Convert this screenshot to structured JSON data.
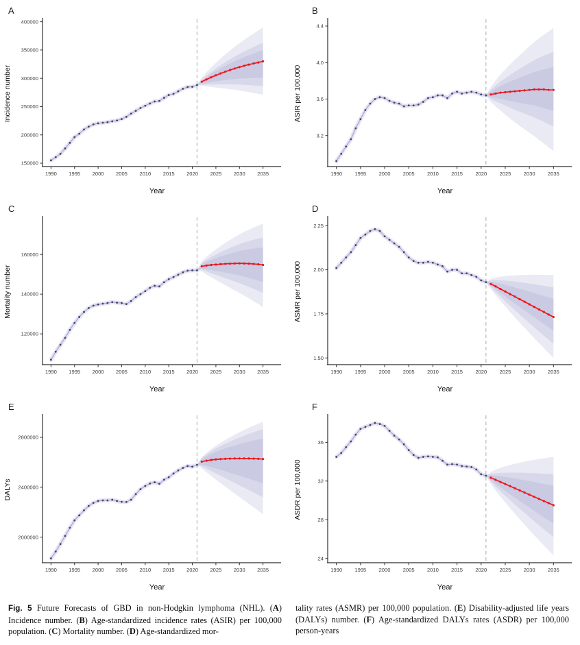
{
  "style": {
    "history_line_color": "#a9a7d9",
    "history_ribbon_color": "#b7b5e0",
    "history_point_color": "#45435f",
    "forecast_line_color": "#f01418",
    "band_fill_color": "#8d8dc2",
    "dashed_line_color": "#bdbdbd",
    "axis_color": "#2e2e2e",
    "tick_label_color": "#3d3d3d"
  },
  "caption": {
    "left_segments": [
      {
        "t": "Fig. 5",
        "fig": true
      },
      {
        "t": "  Future Forecasts of GBD in non-Hodgkin lymphoma (NHL). (",
        "b": false
      },
      {
        "t": "A",
        "b": true
      },
      {
        "t": ") Incidence number. (",
        "b": false
      },
      {
        "t": "B",
        "b": true
      },
      {
        "t": ") Age-standardized incidence rates (ASIR) per 100,000 population. (",
        "b": false
      },
      {
        "t": "C",
        "b": true
      },
      {
        "t": ") Mortality number. (",
        "b": false
      },
      {
        "t": "D",
        "b": true
      },
      {
        "t": ") Age-standardized mor-",
        "b": false
      }
    ],
    "right_segments": [
      {
        "t": "tality rates (ASMR) per 100,000 population. (",
        "b": false
      },
      {
        "t": "E",
        "b": true
      },
      {
        "t": ") Disability-adjusted life years (DALYs) number. (",
        "b": false
      },
      {
        "t": "F",
        "b": true
      },
      {
        "t": ") Age-standardized DALYs rates (ASDR) per 100,000 person-years",
        "b": false
      }
    ]
  },
  "chart_data": [
    {
      "type": "line",
      "panel_letter": "A",
      "ylabel": "Incidence number",
      "xlabel": "Year",
      "xlim": [
        1988.2,
        2036.8
      ],
      "ylim": [
        144000,
        402000
      ],
      "x_tick_labels": [
        "1990",
        "1995",
        "2000",
        "2005",
        "2010",
        "2015",
        "2020",
        "2025",
        "2030",
        "2035"
      ],
      "x_tick_values": [
        1990,
        1995,
        2000,
        2005,
        2010,
        2015,
        2020,
        2025,
        2030,
        2035
      ],
      "y_tick_labels": [
        "150000",
        "200000",
        "250000",
        "300000",
        "350000",
        "400000"
      ],
      "y_tick_values": [
        150000,
        200000,
        250000,
        300000,
        350000,
        400000
      ],
      "history_years_start": 1990,
      "history_values": [
        155000,
        160500,
        166500,
        176000,
        186000,
        196000,
        202000,
        209500,
        214500,
        218500,
        220500,
        221500,
        222500,
        224000,
        225500,
        228000,
        232000,
        237500,
        242500,
        247500,
        251500,
        255500,
        259000,
        260000,
        265500,
        270500,
        272500,
        277000,
        281500,
        284500,
        285000,
        288000
      ],
      "forecast_break_year": 2021,
      "forecast_years_start": 2022,
      "forecast_values": [
        294000,
        298000,
        301800,
        305300,
        308600,
        311700,
        314600,
        317300,
        319800,
        322100,
        324200,
        326100,
        328000,
        330000
      ],
      "forecast_bands": [
        {
          "level": 95,
          "lo_end": 271000,
          "hi_end": 390000
        },
        {
          "level": 80,
          "lo_end": 286000,
          "hi_end": 363000
        },
        {
          "level": 50,
          "lo_end": 301000,
          "hi_end": 350000
        }
      ]
    },
    {
      "type": "line",
      "panel_letter": "B",
      "ylabel": "ASIR per 100,000",
      "xlabel": "Year",
      "xlim": [
        1988.2,
        2036.8
      ],
      "ylim": [
        2.86,
        4.46
      ],
      "x_tick_labels": [
        "1990",
        "1995",
        "2000",
        "2005",
        "2010",
        "2015",
        "2020",
        "2025",
        "2030",
        "2035"
      ],
      "x_tick_values": [
        1990,
        1995,
        2000,
        2005,
        2010,
        2015,
        2020,
        2025,
        2030,
        2035
      ],
      "y_tick_labels": [
        "3.2",
        "3.6",
        "4.0",
        "4.4"
      ],
      "y_tick_values": [
        3.2,
        3.6,
        4.0,
        4.4
      ],
      "history_years_start": 1990,
      "history_values": [
        2.92,
        3.0,
        3.08,
        3.16,
        3.28,
        3.38,
        3.48,
        3.55,
        3.6,
        3.62,
        3.61,
        3.58,
        3.56,
        3.55,
        3.52,
        3.53,
        3.53,
        3.54,
        3.57,
        3.61,
        3.62,
        3.64,
        3.64,
        3.61,
        3.66,
        3.68,
        3.66,
        3.67,
        3.68,
        3.67,
        3.65,
        3.64
      ],
      "forecast_break_year": 2021,
      "forecast_years_start": 2022,
      "forecast_values": [
        3.65,
        3.66,
        3.67,
        3.675,
        3.68,
        3.685,
        3.69,
        3.695,
        3.7,
        3.705,
        3.705,
        3.705,
        3.7,
        3.7
      ],
      "forecast_bands": [
        {
          "level": 95,
          "lo_end": 3.03,
          "hi_end": 4.38
        },
        {
          "level": 80,
          "lo_end": 3.3,
          "hi_end": 4.12
        },
        {
          "level": 50,
          "lo_end": 3.47,
          "hi_end": 3.95
        }
      ]
    },
    {
      "type": "line",
      "panel_letter": "C",
      "ylabel": "Mortality number",
      "xlabel": "Year",
      "xlim": [
        1988.2,
        2036.8
      ],
      "ylim": [
        104500,
        178000
      ],
      "x_tick_labels": [
        "1990",
        "1995",
        "2000",
        "2005",
        "2010",
        "2015",
        "2020",
        "2025",
        "2030",
        "2035"
      ],
      "x_tick_values": [
        1990,
        1995,
        2000,
        2005,
        2010,
        2015,
        2020,
        2025,
        2030,
        2035
      ],
      "y_tick_labels": [
        "120000",
        "140000",
        "160000"
      ],
      "y_tick_values": [
        120000,
        140000,
        160000
      ],
      "history_years_start": 1990,
      "history_values": [
        107000,
        111000,
        114500,
        118000,
        122000,
        125500,
        128500,
        131000,
        133000,
        134200,
        134800,
        135200,
        135500,
        136000,
        135700,
        135500,
        135000,
        136500,
        138500,
        140000,
        141500,
        143200,
        144200,
        143900,
        146000,
        147500,
        148600,
        149800,
        151000,
        151800,
        152000,
        152000
      ],
      "forecast_break_year": 2021,
      "forecast_years_start": 2022,
      "forecast_values": [
        154000,
        154400,
        154700,
        154900,
        155100,
        155250,
        155350,
        155450,
        155500,
        155450,
        155350,
        155200,
        155000,
        154700
      ],
      "forecast_bands": [
        {
          "level": 95,
          "lo_end": 133500,
          "hi_end": 175500
        },
        {
          "level": 80,
          "lo_end": 140500,
          "hi_end": 168500
        },
        {
          "level": 50,
          "lo_end": 146000,
          "hi_end": 163500
        }
      ]
    },
    {
      "type": "line",
      "panel_letter": "D",
      "ylabel": "ASMR per 100,000",
      "xlabel": "Year",
      "xlim": [
        1988.2,
        2036.8
      ],
      "ylim": [
        1.462,
        2.29
      ],
      "x_tick_labels": [
        "1990",
        "1995",
        "2000",
        "2005",
        "2010",
        "2015",
        "2020",
        "2025",
        "2030",
        "2035"
      ],
      "x_tick_values": [
        1990,
        1995,
        2000,
        2005,
        2010,
        2015,
        2020,
        2025,
        2030,
        2035
      ],
      "y_tick_labels": [
        "1.50",
        "1.75",
        "2.00",
        "2.25"
      ],
      "y_tick_values": [
        1.5,
        1.75,
        2.0,
        2.25
      ],
      "history_years_start": 1990,
      "history_values": [
        2.01,
        2.04,
        2.07,
        2.1,
        2.14,
        2.18,
        2.2,
        2.22,
        2.23,
        2.22,
        2.19,
        2.17,
        2.15,
        2.13,
        2.1,
        2.07,
        2.05,
        2.04,
        2.04,
        2.045,
        2.04,
        2.03,
        2.02,
        1.99,
        2.0,
        2.0,
        1.98,
        1.98,
        1.97,
        1.96,
        1.94,
        1.93
      ],
      "forecast_break_year": 2021,
      "forecast_years_start": 2022,
      "forecast_values": [
        1.92,
        1.906,
        1.891,
        1.877,
        1.862,
        1.848,
        1.833,
        1.819,
        1.804,
        1.79,
        1.775,
        1.761,
        1.746,
        1.732
      ],
      "forecast_bands": [
        {
          "level": 95,
          "lo_end": 1.5,
          "hi_end": 1.97
        },
        {
          "level": 80,
          "lo_end": 1.58,
          "hi_end": 1.9
        },
        {
          "level": 50,
          "lo_end": 1.655,
          "hi_end": 1.835
        }
      ]
    },
    {
      "type": "line",
      "panel_letter": "E",
      "ylabel": "DALYs",
      "xlabel": "Year",
      "xlim": [
        1988.2,
        2036.8
      ],
      "ylim": [
        1795000,
        2965000
      ],
      "x_tick_labels": [
        "1990",
        "1995",
        "2000",
        "2005",
        "2010",
        "2015",
        "2020",
        "2025",
        "2030",
        "2035"
      ],
      "x_tick_values": [
        1990,
        1995,
        2000,
        2005,
        2010,
        2015,
        2020,
        2025,
        2030,
        2035
      ],
      "y_tick_labels": [
        "2000000",
        "2400000",
        "2800000"
      ],
      "y_tick_values": [
        2000000,
        2400000,
        2800000
      ],
      "history_years_start": 1990,
      "history_values": [
        1830000,
        1885000,
        1945000,
        2010000,
        2075000,
        2135000,
        2175000,
        2215000,
        2250000,
        2275000,
        2290000,
        2295000,
        2295000,
        2300000,
        2290000,
        2283000,
        2282000,
        2300000,
        2345000,
        2385000,
        2410000,
        2430000,
        2440000,
        2428000,
        2460000,
        2480000,
        2510000,
        2535000,
        2555000,
        2570000,
        2565000,
        2580000
      ],
      "forecast_break_year": 2021,
      "forecast_years_start": 2022,
      "forecast_values": [
        2605000,
        2613000,
        2619000,
        2623000,
        2626000,
        2628000,
        2629500,
        2630500,
        2631000,
        2631000,
        2630500,
        2629500,
        2628000,
        2626000
      ],
      "forecast_bands": [
        {
          "level": 95,
          "lo_end": 2185000,
          "hi_end": 2925000
        },
        {
          "level": 80,
          "lo_end": 2320000,
          "hi_end": 2865000
        },
        {
          "level": 50,
          "lo_end": 2430000,
          "hi_end": 2790000
        }
      ]
    },
    {
      "type": "line",
      "panel_letter": "F",
      "ylabel": "ASDR per 100,000",
      "xlabel": "Year",
      "xlim": [
        1988.2,
        2036.8
      ],
      "ylim": [
        23.55,
        38.65
      ],
      "x_tick_labels": [
        "1990",
        "1995",
        "2000",
        "2005",
        "2010",
        "2015",
        "2020",
        "2025",
        "2030",
        "2035"
      ],
      "x_tick_values": [
        1990,
        1995,
        2000,
        2005,
        2010,
        2015,
        2020,
        2025,
        2030,
        2035
      ],
      "y_tick_labels": [
        "24",
        "28",
        "32",
        "36"
      ],
      "y_tick_values": [
        24,
        28,
        32,
        36
      ],
      "history_years_start": 1990,
      "history_values": [
        34.5,
        34.9,
        35.5,
        36.1,
        36.8,
        37.4,
        37.6,
        37.8,
        38.0,
        37.9,
        37.7,
        37.2,
        36.7,
        36.3,
        35.8,
        35.2,
        34.7,
        34.4,
        34.5,
        34.55,
        34.5,
        34.45,
        34.1,
        33.7,
        33.75,
        33.7,
        33.55,
        33.5,
        33.45,
        33.2,
        32.7,
        32.55
      ],
      "forecast_break_year": 2021,
      "forecast_years_start": 2022,
      "forecast_values": [
        32.35,
        32.13,
        31.91,
        31.69,
        31.47,
        31.25,
        31.03,
        30.81,
        30.59,
        30.37,
        30.15,
        29.93,
        29.72,
        29.5
      ],
      "forecast_bands": [
        {
          "level": 95,
          "lo_end": 24.3,
          "hi_end": 34.5
        },
        {
          "level": 80,
          "lo_end": 26.2,
          "hi_end": 32.7
        },
        {
          "level": 50,
          "lo_end": 27.6,
          "hi_end": 31.5
        }
      ]
    }
  ]
}
